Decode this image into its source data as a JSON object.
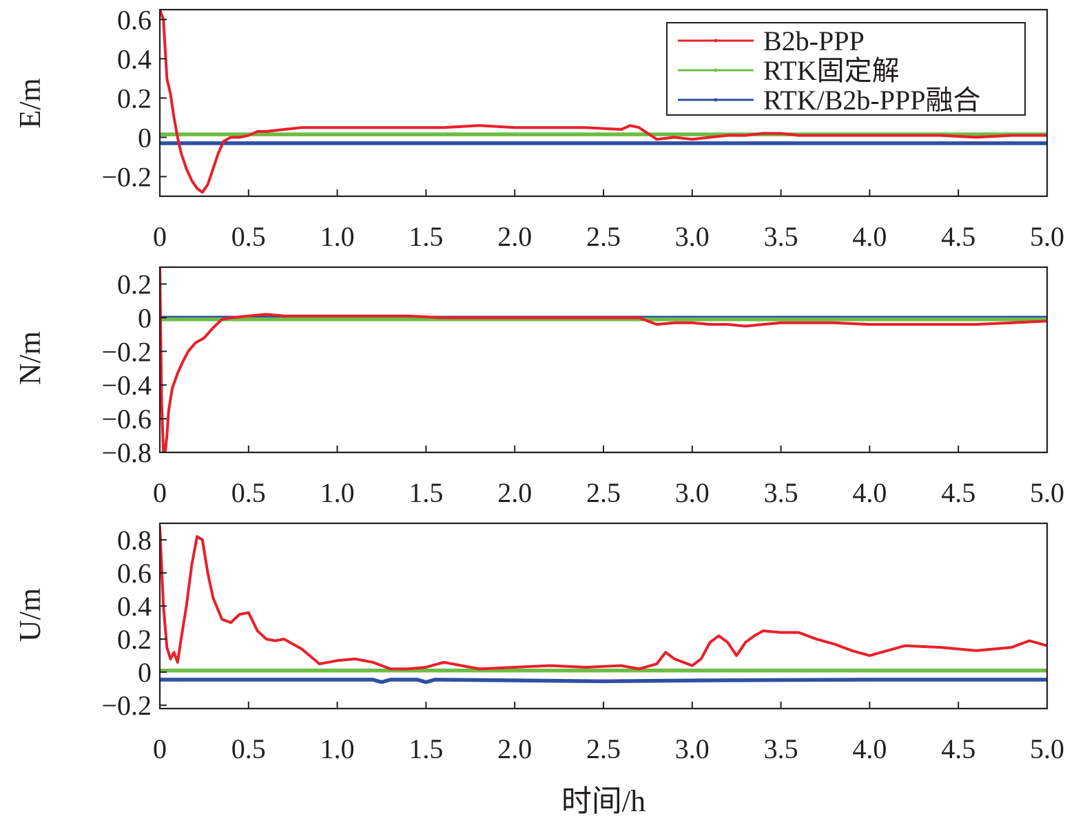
{
  "chart_data": [
    {
      "type": "line",
      "ylabel": "E/m",
      "xlabel": "",
      "xlim": [
        0,
        5.0
      ],
      "ylim": [
        -0.3,
        0.65
      ],
      "xticks": [
        "0",
        "0.5",
        "1.0",
        "1.5",
        "2.0",
        "2.5",
        "3.0",
        "3.5",
        "4.0",
        "4.5",
        "5.0"
      ],
      "yticks": [
        "0.6",
        "0.4",
        "0.2",
        "0",
        "−0.2"
      ],
      "ytick_values": [
        0.6,
        0.4,
        0.2,
        0,
        -0.2
      ],
      "legend": {
        "placement": "top-right",
        "entries": [
          "B2b-PPP",
          "RTK固定解",
          "RTK/B2b-PPP融合"
        ]
      },
      "series": [
        {
          "name": "B2b-PPP",
          "color": "#e8202a",
          "x": [
            0,
            0.02,
            0.04,
            0.06,
            0.08,
            0.1,
            0.12,
            0.15,
            0.18,
            0.21,
            0.24,
            0.27,
            0.3,
            0.33,
            0.36,
            0.4,
            0.45,
            0.5,
            0.55,
            0.6,
            0.7,
            0.8,
            0.9,
            1.0,
            1.2,
            1.4,
            1.6,
            1.8,
            2.0,
            2.2,
            2.4,
            2.6,
            2.65,
            2.7,
            2.75,
            2.8,
            2.9,
            3.0,
            3.1,
            3.2,
            3.3,
            3.4,
            3.5,
            3.6,
            3.8,
            4.0,
            4.2,
            4.4,
            4.6,
            4.8,
            5.0
          ],
          "y": [
            0.65,
            0.6,
            0.3,
            0.22,
            0.1,
            0.0,
            -0.08,
            -0.16,
            -0.22,
            -0.26,
            -0.28,
            -0.24,
            -0.16,
            -0.08,
            -0.02,
            0.0,
            0.0,
            0.01,
            0.03,
            0.03,
            0.04,
            0.05,
            0.05,
            0.05,
            0.05,
            0.05,
            0.05,
            0.06,
            0.05,
            0.05,
            0.05,
            0.04,
            0.06,
            0.05,
            0.02,
            -0.01,
            0.0,
            -0.01,
            0.0,
            0.01,
            0.01,
            0.02,
            0.02,
            0.01,
            0.01,
            0.01,
            0.01,
            0.01,
            0.0,
            0.01,
            0.01
          ]
        },
        {
          "name": "RTK固定解",
          "color": "#6cbd45",
          "x": [
            0,
            5.0
          ],
          "y": [
            0.015,
            0.015
          ]
        },
        {
          "name": "RTK/B2b-PPP融合",
          "color": "#2e4fa3",
          "x": [
            0,
            5.0
          ],
          "y": [
            -0.03,
            -0.03
          ]
        }
      ]
    },
    {
      "type": "line",
      "ylabel": "N/m",
      "xlabel": "",
      "xlim": [
        0,
        5.0
      ],
      "ylim": [
        -0.8,
        0.3
      ],
      "xticks": [
        "0",
        "0.5",
        "1.0",
        "1.5",
        "2.0",
        "2.5",
        "3.0",
        "3.5",
        "4.0",
        "4.5",
        "5.0"
      ],
      "yticks": [
        "0.2",
        "0",
        "−0.2",
        "−0.4",
        "−0.6",
        "−0.8"
      ],
      "ytick_values": [
        0.2,
        0,
        -0.2,
        -0.4,
        -0.6,
        -0.8
      ],
      "series": [
        {
          "name": "B2b-PPP",
          "color": "#e8202a",
          "x": [
            0,
            0.01,
            0.02,
            0.03,
            0.04,
            0.05,
            0.07,
            0.1,
            0.13,
            0.16,
            0.2,
            0.25,
            0.3,
            0.35,
            0.4,
            0.5,
            0.6,
            0.7,
            0.8,
            1.0,
            1.2,
            1.4,
            1.6,
            1.8,
            2.0,
            2.2,
            2.4,
            2.6,
            2.7,
            2.8,
            2.9,
            3.0,
            3.1,
            3.2,
            3.3,
            3.4,
            3.5,
            3.6,
            3.8,
            4.0,
            4.2,
            4.4,
            4.6,
            4.8,
            5.0
          ],
          "y": [
            0.3,
            -0.5,
            -0.8,
            -0.8,
            -0.7,
            -0.55,
            -0.42,
            -0.33,
            -0.26,
            -0.2,
            -0.15,
            -0.12,
            -0.06,
            -0.01,
            0.0,
            0.01,
            0.02,
            0.01,
            0.01,
            0.01,
            0.01,
            0.01,
            0.0,
            0.0,
            0.0,
            0.0,
            0.0,
            0.0,
            0.0,
            -0.04,
            -0.03,
            -0.03,
            -0.04,
            -0.04,
            -0.05,
            -0.04,
            -0.03,
            -0.03,
            -0.03,
            -0.04,
            -0.04,
            -0.04,
            -0.04,
            -0.03,
            -0.02
          ]
        },
        {
          "name": "RTK固定解",
          "color": "#6cbd45",
          "x": [
            0,
            5.0
          ],
          "y": [
            -0.01,
            -0.01
          ]
        },
        {
          "name": "RTK/B2b-PPP融合",
          "color": "#2e4fa3",
          "x": [
            0,
            5.0
          ],
          "y": [
            0.0,
            0.0
          ]
        }
      ]
    },
    {
      "type": "line",
      "ylabel": "U/m",
      "xlabel": "时间/h",
      "xlim": [
        0,
        5.0
      ],
      "ylim": [
        -0.22,
        0.9
      ],
      "xticks": [
        "0",
        "0.5",
        "1.0",
        "1.5",
        "2.0",
        "2.5",
        "3.0",
        "3.5",
        "4.0",
        "4.5",
        "5.0"
      ],
      "yticks": [
        "0.8",
        "0.6",
        "0.4",
        "0.2",
        "0",
        "−0.2"
      ],
      "ytick_values": [
        0.8,
        0.6,
        0.4,
        0.2,
        0,
        -0.2
      ],
      "series": [
        {
          "name": "B2b-PPP",
          "color": "#e8202a",
          "x": [
            0,
            0.02,
            0.04,
            0.06,
            0.08,
            0.1,
            0.12,
            0.15,
            0.18,
            0.21,
            0.24,
            0.27,
            0.3,
            0.35,
            0.4,
            0.45,
            0.5,
            0.55,
            0.6,
            0.65,
            0.7,
            0.8,
            0.9,
            1.0,
            1.1,
            1.2,
            1.3,
            1.4,
            1.5,
            1.6,
            1.7,
            1.8,
            2.0,
            2.2,
            2.4,
            2.6,
            2.7,
            2.8,
            2.85,
            2.9,
            3.0,
            3.05,
            3.1,
            3.15,
            3.2,
            3.25,
            3.3,
            3.35,
            3.4,
            3.5,
            3.6,
            3.7,
            3.8,
            3.9,
            4.0,
            4.2,
            4.4,
            4.6,
            4.8,
            4.9,
            5.0
          ],
          "y": [
            0.88,
            0.4,
            0.15,
            0.08,
            0.12,
            0.06,
            0.2,
            0.4,
            0.65,
            0.82,
            0.8,
            0.6,
            0.45,
            0.32,
            0.3,
            0.35,
            0.36,
            0.25,
            0.2,
            0.19,
            0.2,
            0.14,
            0.05,
            0.07,
            0.08,
            0.06,
            0.02,
            0.02,
            0.03,
            0.06,
            0.04,
            0.02,
            0.03,
            0.04,
            0.03,
            0.04,
            0.02,
            0.05,
            0.12,
            0.08,
            0.04,
            0.08,
            0.18,
            0.22,
            0.18,
            0.1,
            0.18,
            0.22,
            0.25,
            0.24,
            0.24,
            0.2,
            0.17,
            0.13,
            0.1,
            0.16,
            0.15,
            0.13,
            0.15,
            0.19,
            0.16
          ]
        },
        {
          "name": "RTK固定解",
          "color": "#6cbd45",
          "x": [
            0,
            5.0
          ],
          "y": [
            0.01,
            0.01
          ]
        },
        {
          "name": "RTK/B2b-PPP融合",
          "color": "#2e4fa3",
          "x": [
            0,
            1.2,
            1.25,
            1.3,
            1.45,
            1.5,
            1.55,
            2.5,
            3.0,
            4.0,
            5.0
          ],
          "y": [
            -0.045,
            -0.045,
            -0.06,
            -0.045,
            -0.045,
            -0.06,
            -0.045,
            -0.055,
            -0.05,
            -0.045,
            -0.045
          ]
        }
      ]
    }
  ]
}
